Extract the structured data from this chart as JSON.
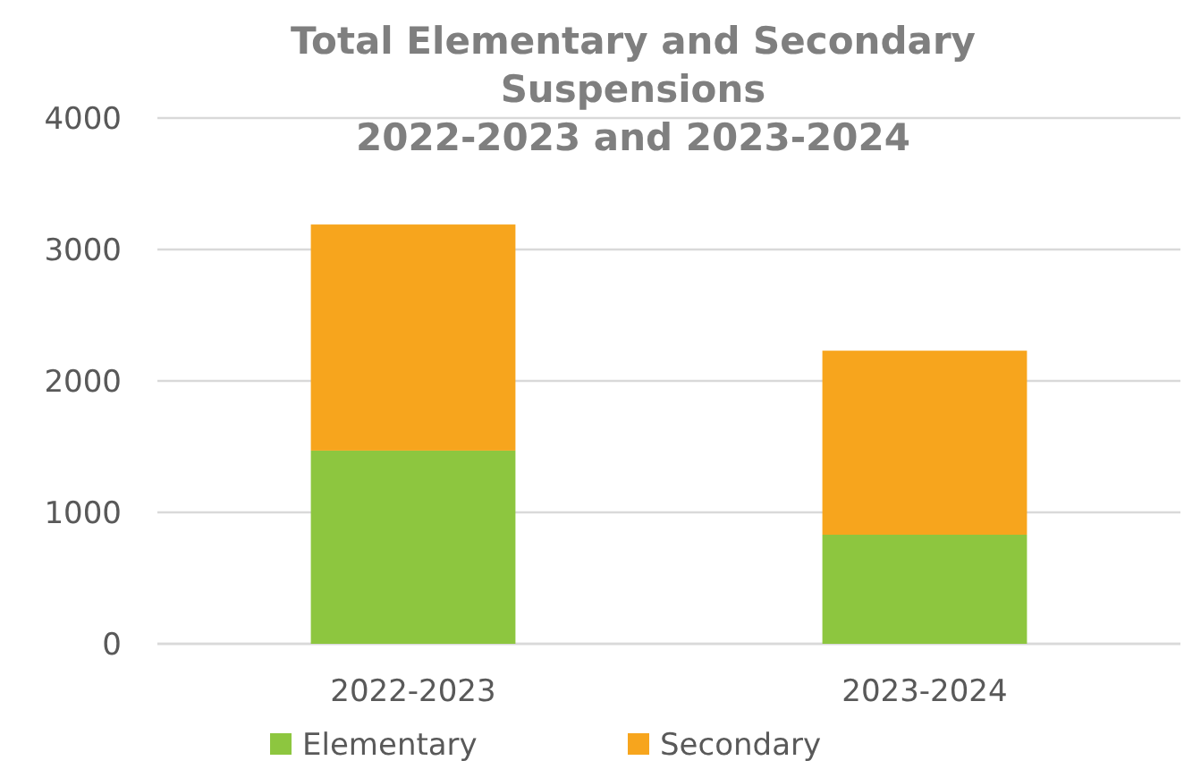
{
  "chart_data": {
    "type": "bar",
    "title": "Total Elementary and Secondary Suspensions\n2022-2023 and 2023-2024",
    "categories": [
      "2022-2023",
      "2023-2024"
    ],
    "series": [
      {
        "name": "Elementary",
        "color": "#8dc63f",
        "values": [
          1470,
          830
        ]
      },
      {
        "name": "Secondary",
        "color": "#f7a51d",
        "values": [
          1720,
          1400
        ]
      }
    ],
    "stacked": true,
    "ylim": [
      0,
      4000
    ],
    "yticks": [
      0,
      1000,
      2000,
      3000,
      4000
    ],
    "grid": "y",
    "legend": "bottom"
  }
}
